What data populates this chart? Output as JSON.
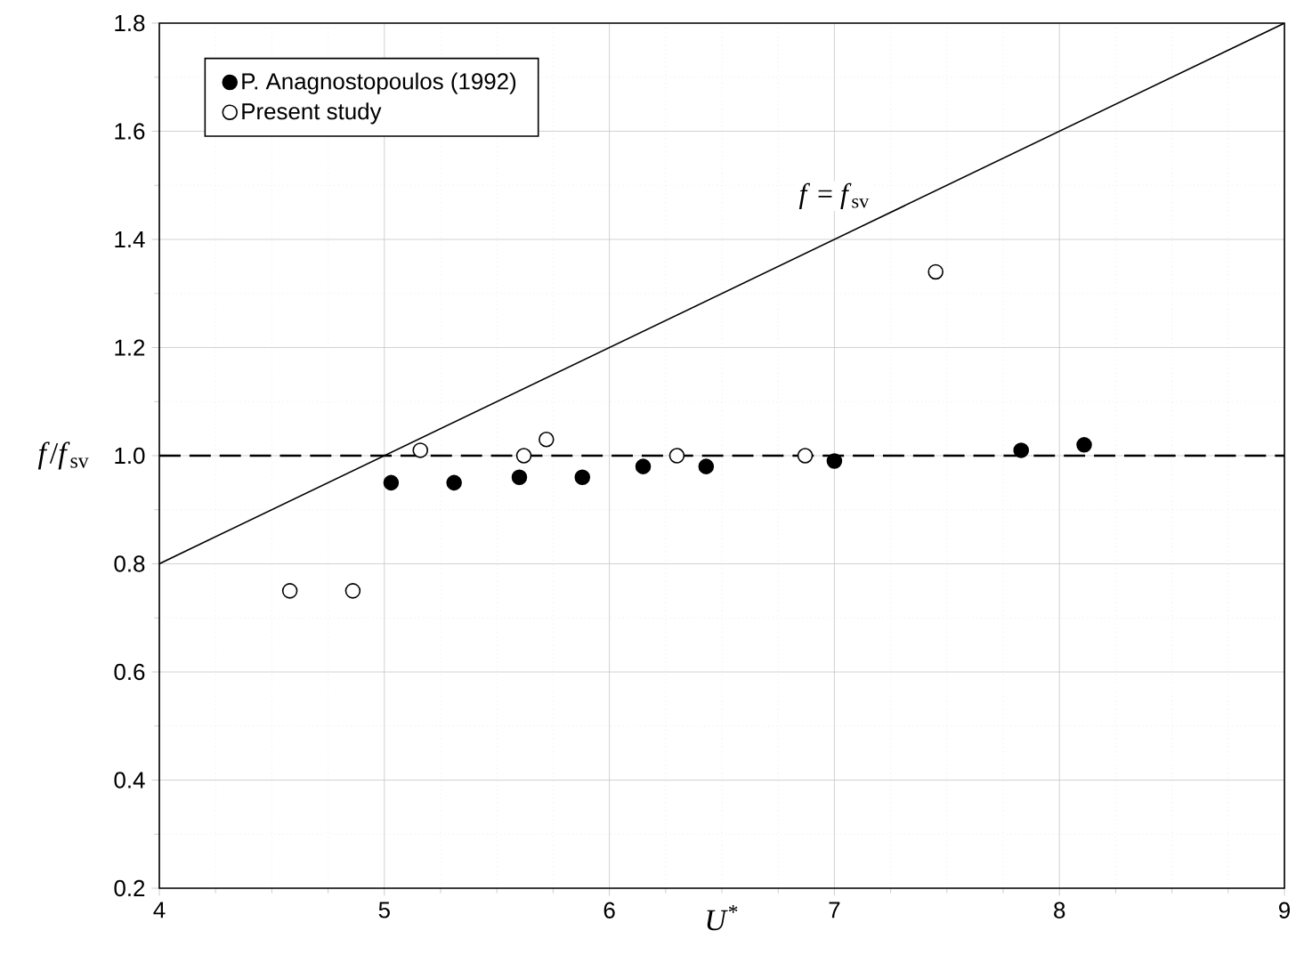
{
  "chart_data": {
    "type": "scatter",
    "xlabel": "*U*$^{*}$",
    "ylabel": "*f*/*f*$_{sv}$",
    "xlim": [
      4,
      9
    ],
    "ylim": [
      0.2,
      1.8
    ],
    "xticks": [
      4,
      5,
      6,
      7,
      8,
      9
    ],
    "yticks": [
      0.2,
      0.4,
      0.6,
      0.8,
      {
        "value": 1.0,
        "label": "1.0"
      },
      1.2,
      1.4,
      1.6,
      1.8
    ],
    "grid": true,
    "legend": "top left",
    "series": [
      {
        "name": "P. Anagnostopoulos (1992)",
        "color": "#000000",
        "marker": "circle",
        "x": [
          5.03,
          5.31,
          5.6,
          5.88,
          6.15,
          6.43,
          7.0,
          7.83,
          8.11
        ],
        "values": [
          0.95,
          0.95,
          0.96,
          0.96,
          0.98,
          0.98,
          0.99,
          1.01,
          1.02
        ]
      },
      {
        "name": "Present study",
        "color": "#ffffff",
        "marker": "circle",
        "x": [
          4.58,
          4.86,
          5.16,
          5.62,
          5.72,
          6.3,
          6.87,
          7.45
        ],
        "values": [
          0.75,
          0.75,
          1.01,
          1.0,
          1.03,
          1.0,
          1.0,
          1.34
        ]
      },
      {
        "type": "line",
        "color": "#000000",
        "marker": "none",
        "x": [
          4,
          9
        ],
        "values": [
          0.8,
          1.8
        ]
      }
    ],
    "ref_lines": [
      {
        "axis": "y",
        "value": 1.0,
        "color": "#000000",
        "line_style": "dashed"
      }
    ],
    "annotations": [
      {
        "text": "*f* = *f*$_{sv}$",
        "x": 7.0,
        "y": 1.48
      }
    ]
  }
}
